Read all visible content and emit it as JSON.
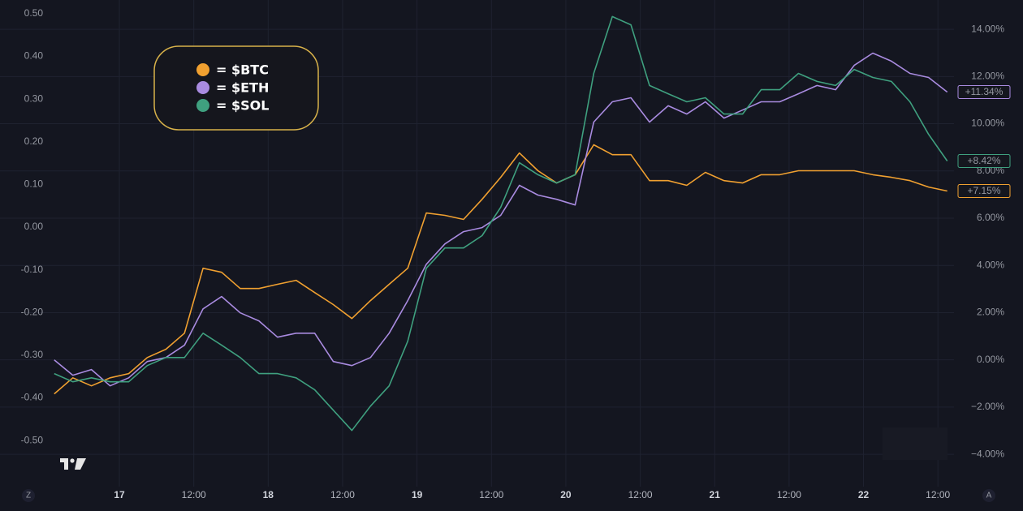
{
  "chart_data": {
    "type": "line",
    "x": [
      16.5625,
      16.6875,
      16.8125,
      16.9375,
      17.0625,
      17.1875,
      17.3125,
      17.4375,
      17.5625,
      17.6875,
      17.8125,
      17.9375,
      18.0625,
      18.1875,
      18.3125,
      18.4375,
      18.5625,
      18.6875,
      18.8125,
      18.9375,
      19.0625,
      19.1875,
      19.3125,
      19.4375,
      19.5625,
      19.6875,
      19.8125,
      19.9375,
      20.0625,
      20.1875,
      20.3125,
      20.4375,
      20.5625,
      20.6875,
      20.8125,
      20.9375,
      21.0625,
      21.1875,
      21.3125,
      21.4375,
      21.5625,
      21.6875,
      21.8125,
      21.9375,
      22.0625,
      22.1875,
      22.3125,
      22.4375,
      22.5625
    ],
    "xlim": [
      16.198,
      22.608
    ],
    "xticks": [
      17,
      {
        "value": 17.5,
        "label": "12:00"
      },
      18,
      {
        "value": 18.5,
        "label": "12:00"
      },
      19,
      {
        "value": 19.5,
        "label": "12:00"
      },
      20,
      {
        "value": 20.5,
        "label": "12:00"
      },
      21,
      {
        "value": 21.5,
        "label": "12:00"
      },
      22,
      {
        "value": 22.5,
        "label": "12:00"
      }
    ],
    "ylim": [
      -0.608,
      0.532
    ],
    "yticks": [
      {
        "value": 0.5,
        "label": "0.50"
      },
      {
        "value": 0.4,
        "label": "0.40"
      },
      {
        "value": 0.3,
        "label": "0.30"
      },
      {
        "value": 0.2,
        "label": "0.20"
      },
      {
        "value": 0.1,
        "label": "0.10"
      },
      {
        "value": 0,
        "label": "0.00"
      },
      {
        "value": -0.1,
        "label": "-0.10"
      },
      {
        "value": -0.2,
        "label": "-0.20"
      },
      {
        "value": -0.3,
        "label": "-0.30"
      },
      {
        "value": -0.4,
        "label": "-0.40"
      },
      {
        "value": -0.5,
        "label": "-0.50"
      }
    ],
    "y2lim": [
      -5.37,
      15.24
    ],
    "y2ticks": [
      {
        "value": 14,
        "label": "14.00%"
      },
      {
        "value": 12,
        "label": "12.00%"
      },
      {
        "value": 10,
        "label": "10.00%"
      },
      {
        "value": 8,
        "label": "8.00%"
      },
      {
        "value": 6,
        "label": "6.00%"
      },
      {
        "value": 4,
        "label": "4.00%"
      },
      {
        "value": 2,
        "label": "2.00%"
      },
      {
        "value": 0,
        "label": "0.00%"
      },
      {
        "value": -2,
        "label": "−2.00%"
      },
      {
        "value": -4,
        "label": "−4.00%"
      }
    ],
    "grid": true,
    "legend": "upper left",
    "series": [
      {
        "name": "= $BTC",
        "color": "#f0a030",
        "axis": "y2",
        "values": [
          -1.44,
          -0.76,
          -1.1,
          -0.76,
          -0.58,
          0.1,
          0.45,
          1.13,
          3.88,
          3.71,
          3.02,
          3.02,
          3.2,
          3.37,
          2.85,
          2.34,
          1.75,
          2.51,
          3.2,
          3.88,
          6.22,
          6.12,
          5.95,
          6.8,
          7.73,
          8.76,
          8.01,
          7.49,
          7.84,
          9.11,
          8.69,
          8.69,
          7.59,
          7.59,
          7.39,
          7.94,
          7.59,
          7.49,
          7.84,
          7.84,
          8.01,
          8.01,
          8.01,
          8.01,
          7.84,
          7.73,
          7.59,
          7.32,
          7.15
        ],
        "value_labels": [
          null,
          null,
          null,
          null,
          null,
          null,
          null,
          null,
          null,
          null,
          null,
          null,
          null,
          null,
          null,
          null,
          null,
          null,
          null,
          null,
          null,
          null,
          null,
          null,
          null,
          null,
          null,
          null,
          null,
          null,
          null,
          null,
          null,
          null,
          null,
          null,
          null,
          null,
          null,
          null,
          null,
          null,
          null,
          null,
          null,
          null,
          null,
          null,
          "+7.15%"
        ]
      },
      {
        "name": "= $ETH",
        "color": "#a98be0",
        "axis": "y2",
        "values": [
          0,
          -0.65,
          -0.41,
          -1.1,
          -0.76,
          -0.07,
          0.1,
          0.62,
          2.16,
          2.68,
          1.99,
          1.65,
          0.96,
          1.13,
          1.13,
          -0.07,
          -0.24,
          0.1,
          1.13,
          2.51,
          4.05,
          4.91,
          5.43,
          5.6,
          6.12,
          7.39,
          6.98,
          6.8,
          6.56,
          10.07,
          10.93,
          11.1,
          10.07,
          10.76,
          10.41,
          10.93,
          10.24,
          10.58,
          10.93,
          10.93,
          11.27,
          11.62,
          11.44,
          12.47,
          12.99,
          12.65,
          12.13,
          11.96,
          11.34
        ],
        "value_labels": [
          null,
          null,
          null,
          null,
          null,
          null,
          null,
          null,
          null,
          null,
          null,
          null,
          null,
          null,
          null,
          null,
          null,
          null,
          null,
          null,
          null,
          null,
          null,
          null,
          null,
          null,
          null,
          null,
          null,
          null,
          null,
          null,
          null,
          null,
          null,
          null,
          null,
          null,
          null,
          null,
          null,
          null,
          null,
          null,
          null,
          null,
          null,
          null,
          "+11.34%"
        ]
      },
      {
        "name": "= $SOL",
        "color": "#3fa07f",
        "axis": "y2",
        "values": [
          -0.58,
          -0.93,
          -0.76,
          -0.93,
          -0.93,
          -0.24,
          0.1,
          0.1,
          1.13,
          0.62,
          0.1,
          -0.58,
          -0.58,
          -0.76,
          -1.27,
          -2.13,
          -2.99,
          -1.96,
          -1.1,
          0.79,
          3.88,
          4.74,
          4.74,
          5.26,
          6.46,
          8.35,
          7.84,
          7.49,
          7.84,
          12.13,
          14.54,
          14.19,
          11.62,
          11.27,
          10.93,
          11.1,
          10.41,
          10.41,
          11.44,
          11.44,
          12.13,
          11.79,
          11.62,
          12.3,
          11.96,
          11.79,
          10.93,
          9.55,
          8.42
        ],
        "value_labels": [
          null,
          null,
          null,
          null,
          null,
          null,
          null,
          null,
          null,
          null,
          null,
          null,
          null,
          null,
          null,
          null,
          null,
          null,
          null,
          null,
          null,
          null,
          null,
          null,
          null,
          null,
          null,
          null,
          null,
          null,
          null,
          null,
          null,
          null,
          null,
          null,
          null,
          null,
          null,
          null,
          null,
          null,
          null,
          null,
          null,
          null,
          null,
          null,
          "+8.42%"
        ]
      }
    ]
  },
  "controls": {
    "left": "Z",
    "right": "A"
  }
}
